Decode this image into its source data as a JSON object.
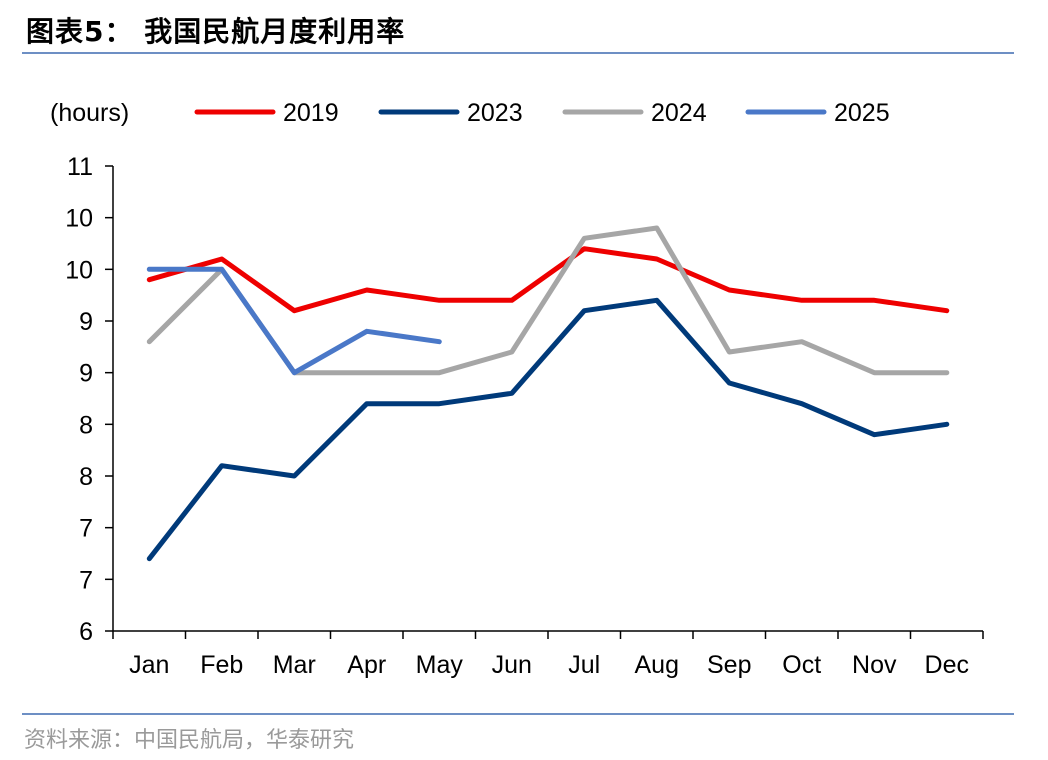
{
  "header": {
    "title": "图表5：  我国民航月度利用率"
  },
  "footer": {
    "source": "资料来源：中国民航局，华泰研究"
  },
  "chart_data": {
    "type": "line",
    "title": "",
    "xlabel": "",
    "ylabel": "(hours)",
    "categories": [
      "Jan",
      "Feb",
      "Mar",
      "Apr",
      "May",
      "Jun",
      "Jul",
      "Aug",
      "Sep",
      "Oct",
      "Nov",
      "Dec"
    ],
    "y_tick_labels": [
      "6",
      "7",
      "7",
      "8",
      "8",
      "9",
      "9",
      "10",
      "10",
      "11"
    ],
    "ylim": [
      6,
      10.5
    ],
    "legend_position": "top",
    "grid": false,
    "series": [
      {
        "name": "2019",
        "color": "#ee0000",
        "values": [
          9.4,
          9.6,
          9.1,
          9.3,
          9.2,
          9.2,
          9.7,
          9.6,
          9.3,
          9.2,
          9.2,
          9.1
        ]
      },
      {
        "name": "2023",
        "color": "#003a7a",
        "values": [
          6.7,
          7.6,
          7.5,
          8.2,
          8.2,
          8.3,
          9.1,
          9.2,
          8.4,
          8.2,
          7.9,
          8.0
        ]
      },
      {
        "name": "2024",
        "color": "#a6a6a6",
        "values": [
          8.8,
          9.5,
          8.5,
          8.5,
          8.5,
          8.7,
          9.8,
          9.9,
          8.7,
          8.8,
          8.5,
          8.5
        ]
      },
      {
        "name": "2025",
        "color": "#4a78c8",
        "values": [
          9.5,
          9.5,
          8.5,
          8.9,
          8.8,
          null,
          null,
          null,
          null,
          null,
          null,
          null
        ]
      }
    ]
  }
}
